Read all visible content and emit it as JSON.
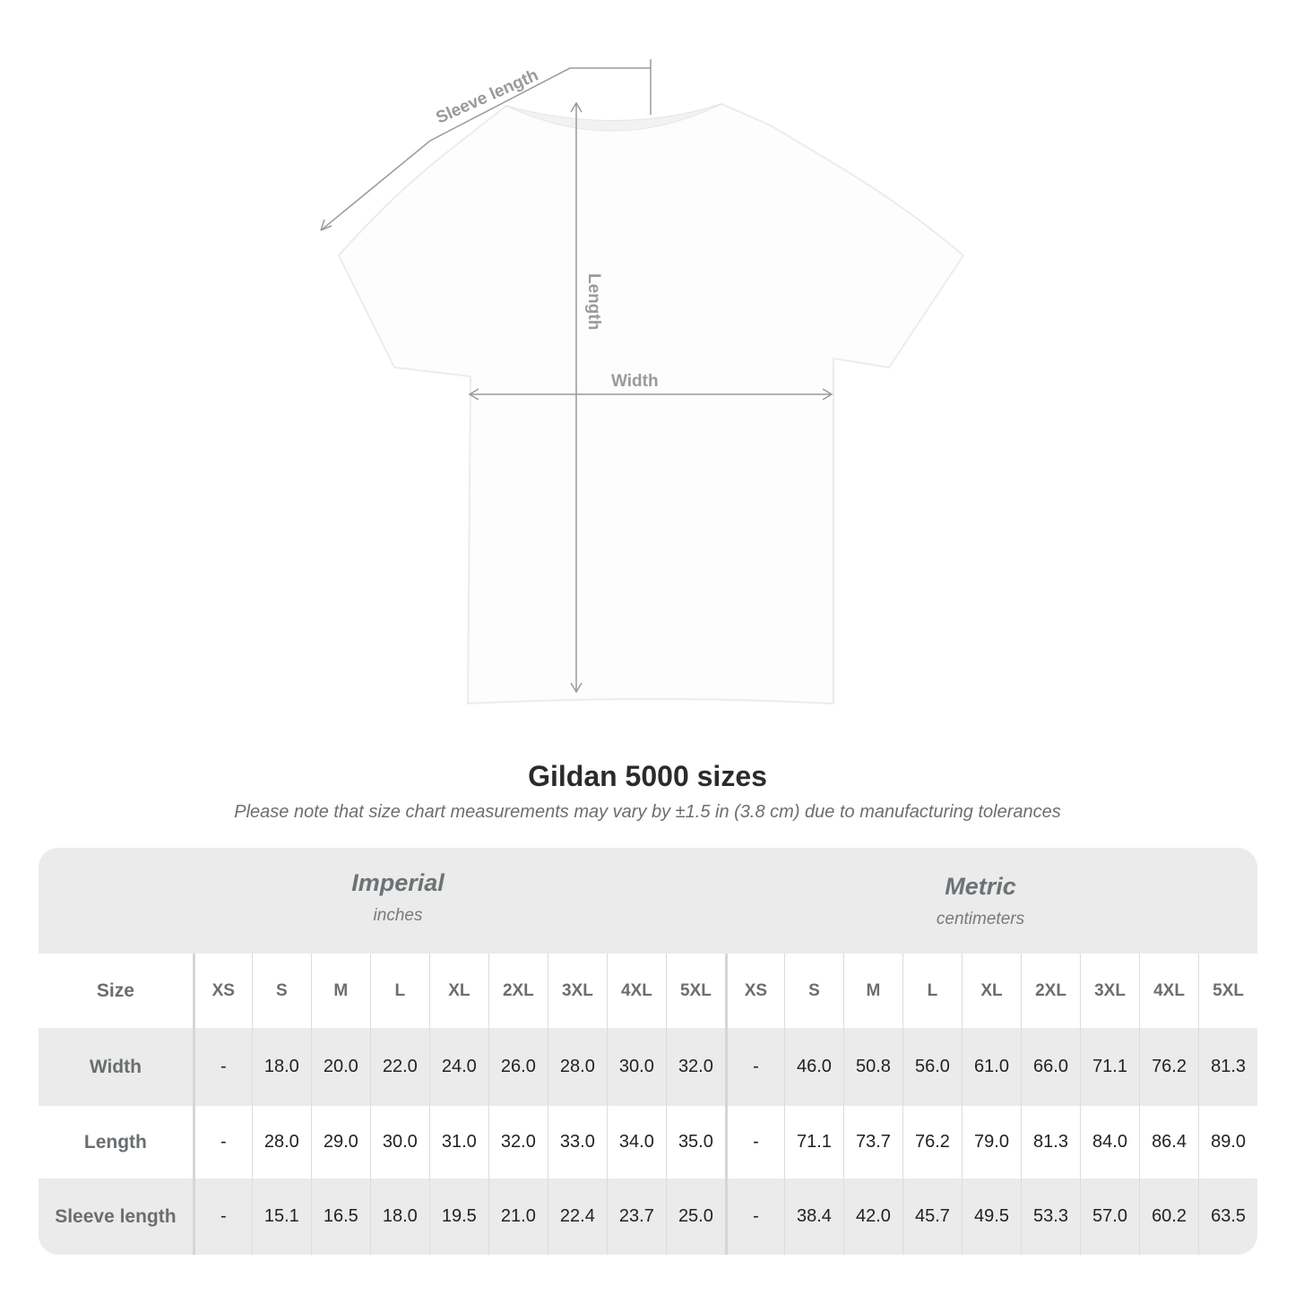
{
  "diagram": {
    "labels": {
      "sleeve": "Sleeve length",
      "length": "Length",
      "width": "Width"
    },
    "colors": {
      "measure_line": "#9a9a9a",
      "shirt": "#ffffff"
    }
  },
  "title": "Gildan 5000 sizes",
  "note": "Please note that size chart measurements may vary by ±1.5 in (3.8 cm) due to manufacturing tolerances",
  "table": {
    "imperial": {
      "name": "Imperial",
      "unit": "inches"
    },
    "metric": {
      "name": "Metric",
      "unit": "centimeters"
    },
    "size_label": "Size",
    "sizes": [
      "XS",
      "S",
      "M",
      "L",
      "XL",
      "2XL",
      "3XL",
      "4XL",
      "5XL"
    ],
    "rows": [
      {
        "label": "Width",
        "imperial": [
          "-",
          "18.0",
          "20.0",
          "22.0",
          "24.0",
          "26.0",
          "28.0",
          "30.0",
          "32.0"
        ],
        "metric": [
          "-",
          "46.0",
          "50.8",
          "56.0",
          "61.0",
          "66.0",
          "71.1",
          "76.2",
          "81.3"
        ]
      },
      {
        "label": "Length",
        "imperial": [
          "-",
          "28.0",
          "29.0",
          "30.0",
          "31.0",
          "32.0",
          "33.0",
          "34.0",
          "35.0"
        ],
        "metric": [
          "-",
          "71.1",
          "73.7",
          "76.2",
          "79.0",
          "81.3",
          "84.0",
          "86.4",
          "89.0"
        ]
      },
      {
        "label": "Sleeve length",
        "imperial": [
          "-",
          "15.1",
          "16.5",
          "18.0",
          "19.5",
          "21.0",
          "22.4",
          "23.7",
          "25.0"
        ],
        "metric": [
          "-",
          "38.4",
          "42.0",
          "45.7",
          "49.5",
          "53.3",
          "57.0",
          "60.2",
          "63.5"
        ]
      }
    ],
    "colors": {
      "band": "#ebebeb",
      "header_text": "#6a6e70"
    }
  }
}
